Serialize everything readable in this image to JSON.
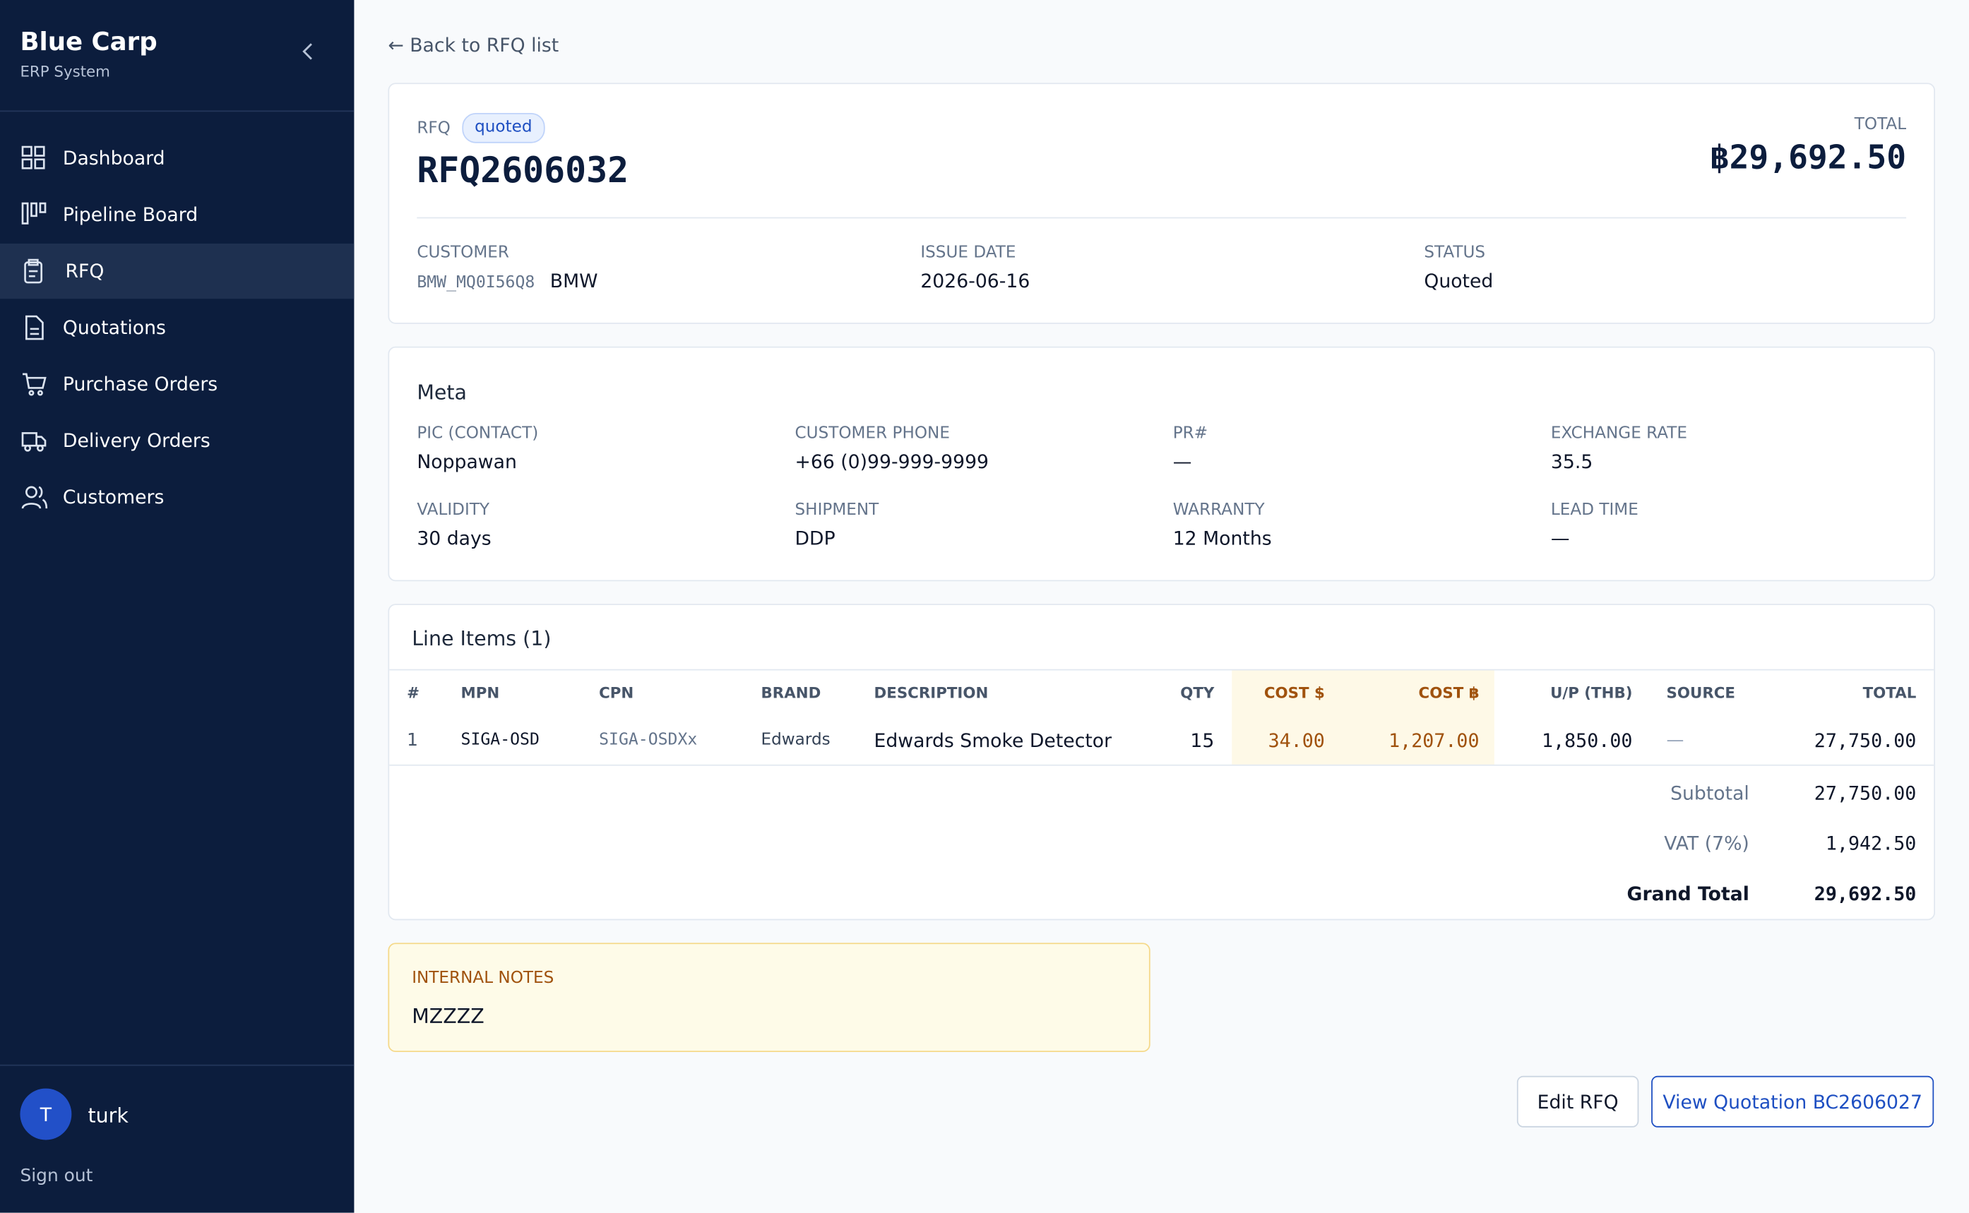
{
  "sidebar": {
    "brand": "Blue Carp",
    "subtitle": "ERP System",
    "nav": [
      "Dashboard",
      "Pipeline Board",
      "RFQ",
      "Quotations",
      "Purchase Orders",
      "Delivery Orders",
      "Customers"
    ],
    "user": {
      "initial": "T",
      "name": "turk"
    },
    "sign_out": "Sign out"
  },
  "back_link": "Back to RFQ list",
  "header": {
    "label": "RFQ",
    "badge": "quoted",
    "number": "RFQ2606032",
    "total_label": "TOTAL",
    "total": "฿29,692.50",
    "fields": [
      {
        "label": "CUSTOMER",
        "code": "BMW_MQ0I56Q8",
        "value": "BMW"
      },
      {
        "label": "ISSUE DATE",
        "value": "2026-06-16"
      },
      {
        "label": "STATUS",
        "value": "Quoted"
      }
    ]
  },
  "meta": {
    "title": "Meta",
    "fields": [
      {
        "label": "PIC (CONTACT)",
        "value": "Noppawan"
      },
      {
        "label": "CUSTOMER PHONE",
        "value": "+66 (0)99-999-9999"
      },
      {
        "label": "PR#",
        "value": "—"
      },
      {
        "label": "EXCHANGE RATE",
        "value": "35.5"
      },
      {
        "label": "VALIDITY",
        "value": "30 days"
      },
      {
        "label": "SHIPMENT",
        "value": "DDP"
      },
      {
        "label": "WARRANTY",
        "value": "12 Months"
      },
      {
        "label": "LEAD TIME",
        "value": "—"
      }
    ]
  },
  "line_items": {
    "title": "Line Items (1)",
    "columns": [
      "#",
      "MPN",
      "CPN",
      "BRAND",
      "DESCRIPTION",
      "QTY",
      "COST $",
      "COST ฿",
      "U/P (THB)",
      "SOURCE",
      "TOTAL"
    ],
    "rows": [
      [
        "1",
        "SIGA-OSD",
        "SIGA-OSDXx",
        "Edwards",
        "Edwards Smoke Detector",
        "15",
        "34.00",
        "1,207.00",
        "1,850.00",
        "—",
        "27,750.00"
      ]
    ],
    "summary": [
      [
        "Subtotal",
        "27,750.00"
      ],
      [
        "VAT (7%)",
        "1,942.50"
      ],
      [
        "Grand Total",
        "29,692.50"
      ]
    ]
  },
  "notes": {
    "label": "INTERNAL NOTES",
    "text": "MZZZZ"
  },
  "actions": [
    "Edit RFQ",
    "View Quotation BC2606027"
  ]
}
